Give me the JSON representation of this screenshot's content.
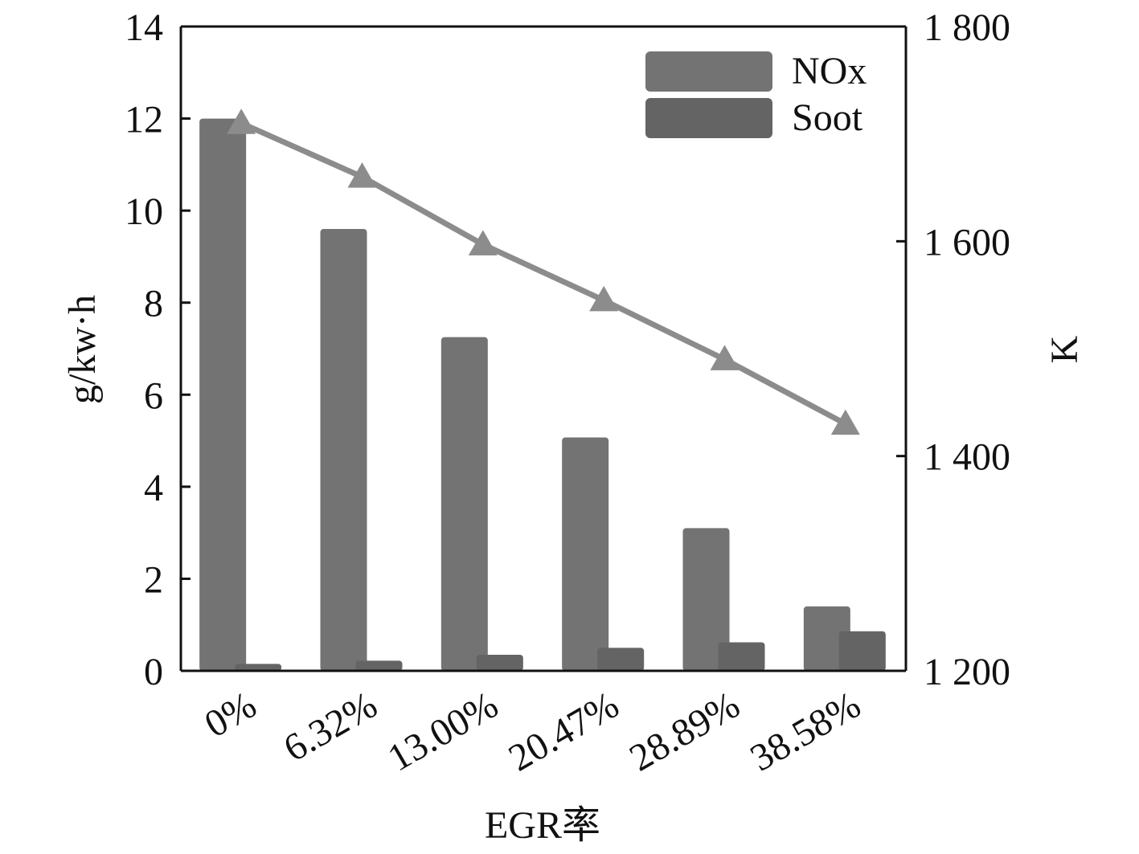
{
  "chart_data": {
    "type": "bar",
    "categories": [
      "0%",
      "6.32%",
      "13.00%",
      "20.47%",
      "28.89%",
      "38.58%"
    ],
    "xlabel": "EGR率",
    "ylabel": "g/kw·h",
    "y2label": "K",
    "ylim": [
      0,
      14
    ],
    "yticks": [
      "0",
      "2",
      "4",
      "6",
      "8",
      "10",
      "12",
      "14"
    ],
    "y2lim": [
      1200,
      1800
    ],
    "y2ticks": [
      "1 200",
      "1 400",
      "1 600",
      "1 800"
    ],
    "legend_position": "top-right",
    "grid": false,
    "series": [
      {
        "name": "NOx",
        "kind": "bar",
        "axis": "left",
        "color": "#737373",
        "values": [
          12.0,
          9.6,
          7.25,
          5.07,
          3.1,
          1.4
        ]
      },
      {
        "name": "Soot",
        "kind": "bar",
        "axis": "left",
        "color": "#646464",
        "values": [
          0.15,
          0.22,
          0.35,
          0.5,
          0.62,
          0.86
        ]
      },
      {
        "kind": "line",
        "axis": "right",
        "color": "#8c8c8c",
        "marker": "triangle",
        "values": [
          1710,
          1660,
          1597,
          1545,
          1490,
          1430
        ]
      }
    ]
  }
}
